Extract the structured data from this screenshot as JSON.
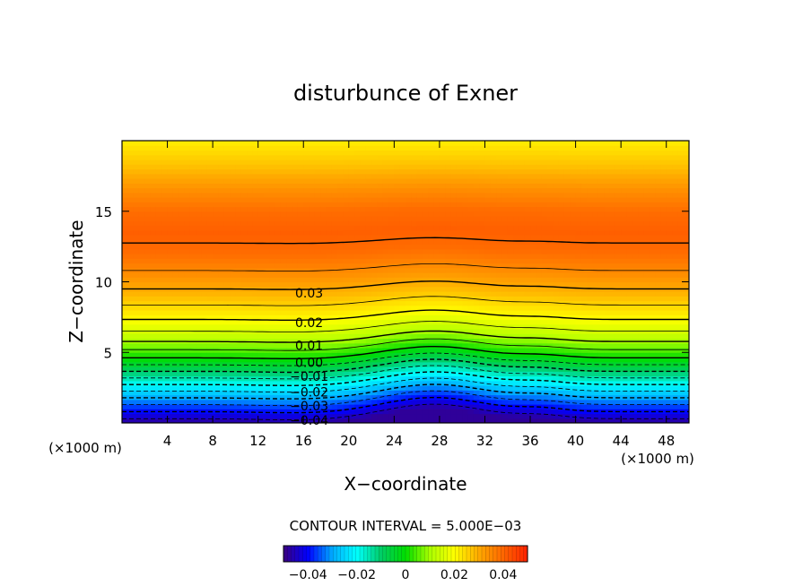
{
  "chart_data": {
    "type": "heatmap",
    "title": "disturbunce of Exner",
    "xlabel": "X−coordinate",
    "ylabel": "Z−coordinate",
    "x_unit": "(×1000 m)",
    "y_unit": "(×1000 m)",
    "xlim": [
      0,
      50
    ],
    "ylim": [
      0,
      20
    ],
    "x_ticks": [
      4,
      8,
      12,
      16,
      20,
      24,
      28,
      32,
      36,
      40,
      44,
      48
    ],
    "y_ticks": [
      5,
      10,
      15
    ],
    "contour_interval_text": "CONTOUR INTERVAL = 5.000E−03",
    "contour_labels": [
      {
        "text": "0.03",
        "x": 16.5,
        "z": 9.2
      },
      {
        "text": "0.02",
        "x": 16.5,
        "z": 7.1
      },
      {
        "text": "0.01",
        "x": 16.5,
        "z": 5.5
      },
      {
        "text": "0.00",
        "x": 16.5,
        "z": 4.3
      },
      {
        "text": "−0.01",
        "x": 16.5,
        "z": 3.3
      },
      {
        "text": "−0.02",
        "x": 16.5,
        "z": 2.2
      },
      {
        "text": "−0.03",
        "x": 16.5,
        "z": 1.2
      },
      {
        "text": "−0.04",
        "x": 16.5,
        "z": 0.2
      }
    ],
    "contour_levels": [
      -0.045,
      -0.04,
      -0.035,
      -0.03,
      -0.025,
      -0.02,
      -0.015,
      -0.01,
      -0.005,
      0.0,
      0.005,
      0.01,
      0.015,
      0.02,
      0.025,
      0.03,
      0.035,
      0.04
    ],
    "field_profile": {
      "z": [
        0,
        0.5,
        1.5,
        3,
        4.5,
        6,
        7.5,
        9,
        10.5,
        12,
        13.5,
        15,
        16.5,
        18,
        20
      ],
      "value": [
        -0.048,
        -0.043,
        -0.033,
        -0.017,
        -0.001,
        0.012,
        0.021,
        0.028,
        0.034,
        0.039,
        0.041,
        0.039,
        0.034,
        0.028,
        0.022
      ]
    },
    "colorbar": {
      "range": [
        -0.05,
        0.05
      ],
      "tick_labels": [
        "−0.04",
        "−0.02",
        "0",
        "0.02",
        "0.04"
      ],
      "tick_values": [
        -0.04,
        -0.02,
        0,
        0.02,
        0.04
      ]
    },
    "colormap": [
      "#3b0080",
      "#0000ff",
      "#00aaff",
      "#00ffff",
      "#00cc66",
      "#00dd00",
      "#aaff00",
      "#ffff00",
      "#ffaa00",
      "#ff6600",
      "#ff2200"
    ]
  }
}
